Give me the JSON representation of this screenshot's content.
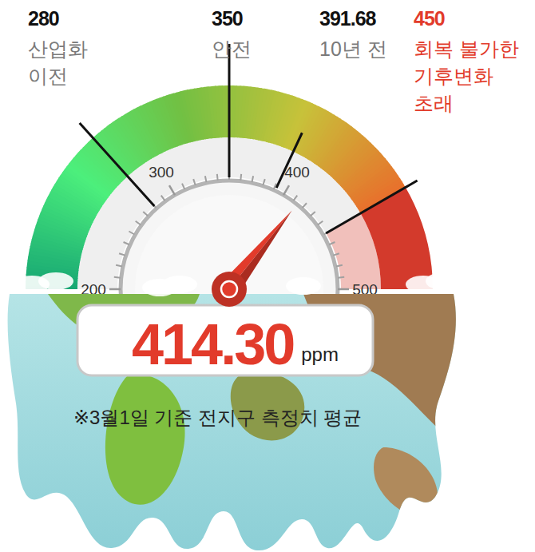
{
  "chart_data": {
    "type": "gauge",
    "value": 414.3,
    "value_label": "414.30",
    "unit": "ppm",
    "color": "#e23b2b",
    "range": [
      200,
      500
    ],
    "ticks": [
      200,
      300,
      400,
      500
    ],
    "minor_ticks": [
      210,
      220,
      230,
      240,
      250,
      260,
      270,
      280,
      290,
      310,
      320,
      330,
      340,
      350,
      360,
      370,
      380,
      390,
      410,
      420,
      430,
      440,
      450,
      460,
      470,
      480,
      490
    ],
    "bands": [
      {
        "from": 200,
        "to": 450,
        "colors": [
          "#17a673",
          "#4cef7c",
          "#72c043",
          "#c7c23a",
          "#e8702c"
        ]
      },
      {
        "from": 450,
        "to": 500,
        "color": "#d33a2c"
      }
    ],
    "markers": [
      {
        "value": 280,
        "text": [
          "산업화",
          "이전"
        ]
      },
      {
        "value": 350,
        "text": [
          "안전"
        ]
      },
      {
        "value": 391.68,
        "text": [
          "10년 전"
        ]
      },
      {
        "value": 450,
        "text": [
          "회복 불가한",
          "기후변화",
          "초래"
        ],
        "color": "#e23b2b"
      }
    ],
    "note": "※3월1일 기준 전지구 측정치 평균"
  }
}
